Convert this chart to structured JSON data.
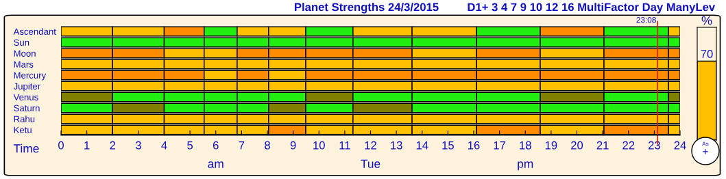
{
  "chart_data": [
    {
      "type": "bar",
      "title": "Planet Strengths 24/3/2015",
      "subtitle": "D1+ 3 4 7 9 10 12 16 MultiFactor Day ManyLev",
      "xlabel": "Time",
      "orientation": "horizontal",
      "stacked": true,
      "categories": [
        "Ascendant",
        "Sun",
        "Moon",
        "Mars",
        "Mercury",
        "Jupiter",
        "Venus",
        "Saturn",
        "Rahu",
        "Ketu"
      ],
      "series": [
        {
          "values": [
            2,
            2,
            2,
            2,
            2,
            2,
            2,
            2,
            2,
            2
          ],
          "colors": [
            "#ffc000",
            "#22ee11",
            "#ff8c00",
            "#ffc000",
            "#ff8c00",
            "#ffc000",
            "#808000",
            "#22ee11",
            "#ffc000",
            "#ffc000"
          ]
        },
        {
          "values": [
            2,
            2,
            2,
            2,
            2,
            2,
            2,
            2,
            2,
            2
          ],
          "colors": [
            "#ffc000",
            "#22ee11",
            "#ff8c00",
            "#ffc000",
            "#ff8c00",
            "#ffc000",
            "#22ee11",
            "#808000",
            "#ffc000",
            "#ffc000"
          ]
        },
        {
          "values": [
            1.55,
            1.55,
            1.55,
            1.55,
            1.55,
            1.55,
            1.55,
            1.55,
            1.55,
            1.55
          ],
          "colors": [
            "#ff8c00",
            "#22ee11",
            "#ffc000",
            "#ffc000",
            "#ff8c00",
            "#ffc000",
            "#22ee11",
            "#22ee11",
            "#ffc000",
            "#ffc000"
          ]
        },
        {
          "values": [
            1.28,
            1.28,
            1.28,
            1.28,
            1.28,
            1.28,
            1.28,
            1.28,
            1.28,
            1.28
          ],
          "colors": [
            "#22ee11",
            "#22ee11",
            "#ffc000",
            "#ffc000",
            "#ffc000",
            "#ffc000",
            "#22ee11",
            "#22ee11",
            "#ffc000",
            "#ffc000"
          ]
        },
        {
          "values": [
            1.22,
            1.22,
            1.22,
            1.22,
            1.22,
            1.22,
            1.22,
            1.22,
            1.22,
            1.22
          ],
          "colors": [
            "#ffc000",
            "#22ee11",
            "#ff8c00",
            "#ffc000",
            "#ff8c00",
            "#ffc000",
            "#22ee11",
            "#22ee11",
            "#ffc000",
            "#ffc000"
          ]
        },
        {
          "values": [
            1.44,
            1.44,
            1.44,
            1.44,
            1.44,
            1.44,
            1.44,
            1.44,
            1.44,
            1.44
          ],
          "colors": [
            "#ffc000",
            "#22ee11",
            "#ff8c00",
            "#ffc000",
            "#ffc000",
            "#ffc000",
            "#22ee11",
            "#808000",
            "#ffc000",
            "#ff8c00"
          ]
        },
        {
          "values": [
            1.83,
            1.83,
            1.83,
            1.83,
            1.83,
            1.83,
            1.83,
            1.83,
            1.83,
            1.83
          ],
          "colors": [
            "#22ee11",
            "#22ee11",
            "#ff8c00",
            "#ffc000",
            "#ff8c00",
            "#ffc000",
            "#808000",
            "#22ee11",
            "#ffc000",
            "#ffc000"
          ]
        },
        {
          "values": [
            2.29,
            2.29,
            2.29,
            2.29,
            2.29,
            2.29,
            2.29,
            2.29,
            2.29,
            2.29
          ],
          "colors": [
            "#ffc000",
            "#22ee11",
            "#ff8c00",
            "#ffc000",
            "#ff8c00",
            "#ffc000",
            "#22ee11",
            "#808000",
            "#ffc000",
            "#ffc000"
          ]
        },
        {
          "values": [
            2.5,
            2.5,
            2.5,
            2.5,
            2.5,
            2.5,
            2.5,
            2.5,
            2.5,
            2.5
          ],
          "colors": [
            "#ffc000",
            "#22ee11",
            "#ffc000",
            "#ffc000",
            "#ff8c00",
            "#ffc000",
            "#22ee11",
            "#22ee11",
            "#ffc000",
            "#ffc000"
          ]
        },
        {
          "values": [
            2.47,
            2.47,
            2.47,
            2.47,
            2.47,
            2.47,
            2.47,
            2.47,
            2.47,
            2.47
          ],
          "colors": [
            "#22ee11",
            "#22ee11",
            "#ff8c00",
            "#ffc000",
            "#ff8c00",
            "#ffc000",
            "#22ee11",
            "#22ee11",
            "#ffc000",
            "#ff8c00"
          ]
        },
        {
          "values": [
            2.47,
            2.47,
            2.47,
            2.47,
            2.47,
            2.47,
            2.47,
            2.47,
            2.47,
            2.47
          ],
          "colors": [
            "#ff8c00",
            "#22ee11",
            "#ffc000",
            "#ffc000",
            "#ff8c00",
            "#ffc000",
            "#808000",
            "#22ee11",
            "#ffc000",
            "#ffc000"
          ]
        },
        {
          "values": [
            2.5,
            2.5,
            2.5,
            2.5,
            2.5,
            2.5,
            2.5,
            2.5,
            2.5,
            2.5
          ],
          "colors": [
            "#22ee11",
            "#22ee11",
            "#ff8c00",
            "#ffc000",
            "#ff8c00",
            "#ffc000",
            "#22ee11",
            "#22ee11",
            "#ffc000",
            "#ff8c00"
          ]
        },
        {
          "values": [
            0.45,
            0.45,
            0.45,
            0.45,
            0.45,
            0.45,
            0.45,
            0.45,
            0.45,
            0.45
          ],
          "colors": [
            "#ffc000",
            "#22ee11",
            "#ff8c00",
            "#ffc000",
            "#ff8c00",
            "#ffc000",
            "#808000",
            "#22ee11",
            "#ffc000",
            "#ffc000"
          ]
        }
      ],
      "xlim": [
        0,
        24
      ],
      "xticks": [
        0,
        1,
        2,
        3,
        4,
        5,
        6,
        7,
        8,
        9,
        10,
        11,
        12,
        13,
        14,
        15,
        16,
        17,
        18,
        19,
        20,
        21,
        22,
        23,
        24
      ],
      "ref_lines": [
        {
          "axis": "x",
          "value": 23.13,
          "label": "23:08",
          "color": "#cc2200"
        }
      ],
      "annotations": [
        "am",
        "Tue",
        "pm"
      ]
    },
    {
      "type": "bar",
      "title": "%",
      "categories": [
        null
      ],
      "values": [
        70
      ],
      "colors": [
        "#ffc000"
      ],
      "ylim": [
        0,
        100
      ],
      "tick_labels": false,
      "data_labels": true,
      "annotations": [
        "As",
        "+"
      ]
    }
  ]
}
